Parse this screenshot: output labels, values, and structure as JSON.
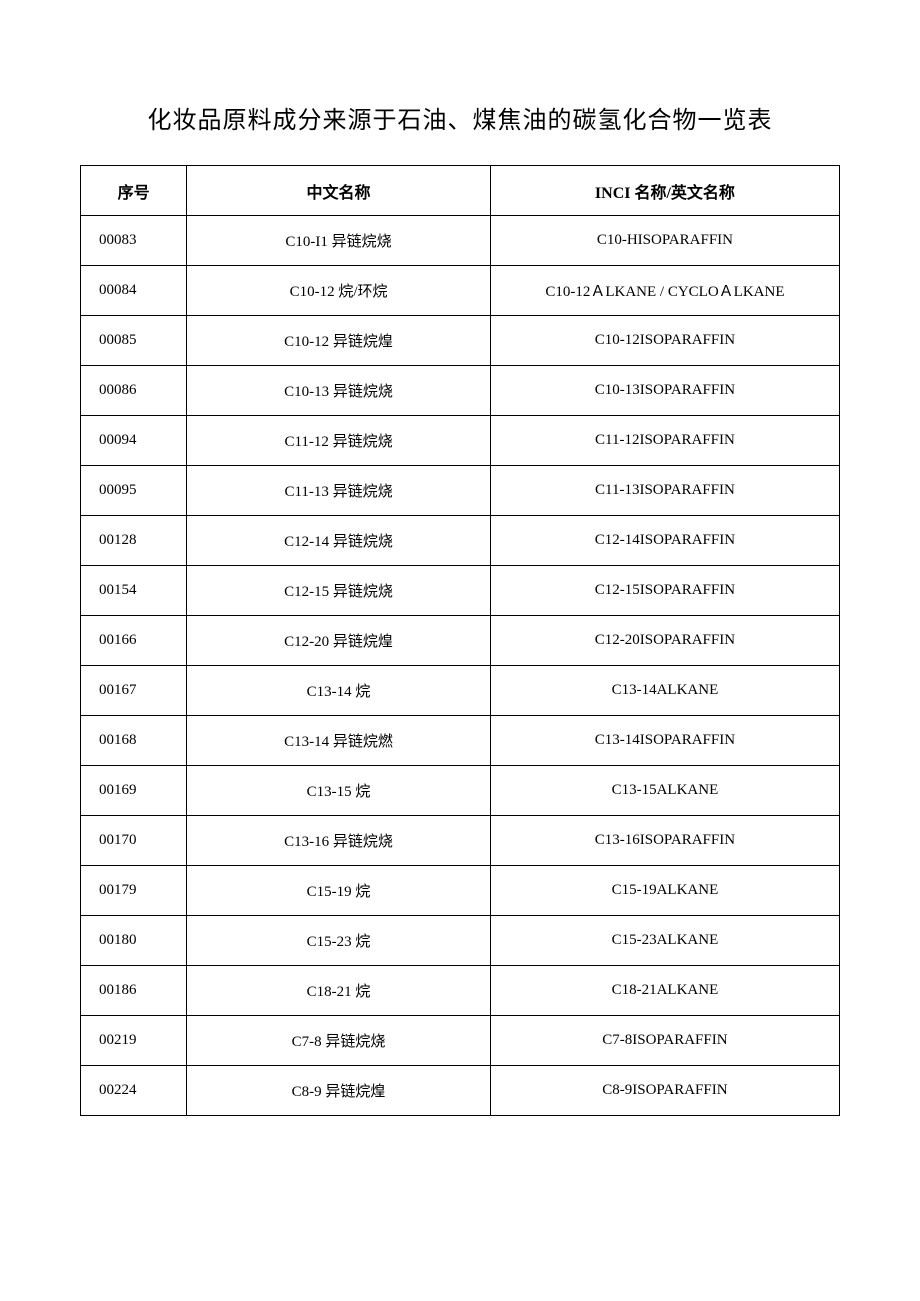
{
  "title": "化妆品原料成分来源于石油、煤焦油的碳氢化合物一览表",
  "columns": [
    "序号",
    "中文名称",
    "INCI 名称/英文名称"
  ],
  "rows": [
    [
      "00083",
      "C10-I1 异链烷烧",
      "C10-HISOPARAFFIN"
    ],
    [
      "00084",
      "C10-12 烷/环烷",
      "C10-12ＡLKANE / CYCLOＡLKANE"
    ],
    [
      "00085",
      "C10-12 异链烷煌",
      "C10-12ISOPARAFFIN"
    ],
    [
      "00086",
      "C10-13 异链烷烧",
      "C10-13ISOPARAFFIN"
    ],
    [
      "00094",
      "C11-12 异链烷烧",
      "C11-12ISOPARAFFIN"
    ],
    [
      "00095",
      "C11-13 异链烷烧",
      "C11-13ISOPARAFFIN"
    ],
    [
      "00128",
      "C12-14 异链烷烧",
      "C12-14ISOPARAFFIN"
    ],
    [
      "00154",
      "C12-15 异链烷烧",
      "C12-15ISOPARAFFIN"
    ],
    [
      "00166",
      "C12-20 异链烷煌",
      "C12-20ISOPARAFFIN"
    ],
    [
      "00167",
      "C13-14 烷",
      "C13-14ALKANE"
    ],
    [
      "00168",
      "C13-14 异链烷燃",
      "C13-14ISOPARAFFIN"
    ],
    [
      "00169",
      "C13-15 烷",
      "C13-15ALKANE"
    ],
    [
      "00170",
      "C13-16 异链烷烧",
      "C13-16ISOPARAFFIN"
    ],
    [
      "00179",
      "C15-19 烷",
      "C15-19ALKANE"
    ],
    [
      "00180",
      "C15-23 烷",
      "C15-23ALKANE"
    ],
    [
      "00186",
      "C18-21 烷",
      "C18-21ALKANE"
    ],
    [
      "00219",
      "C7-8 异链烷烧",
      "C7-8ISOPARAFFIN"
    ],
    [
      "00224",
      "C8-9 异链烷煌",
      "C8-9ISOPARAFFIN"
    ]
  ]
}
